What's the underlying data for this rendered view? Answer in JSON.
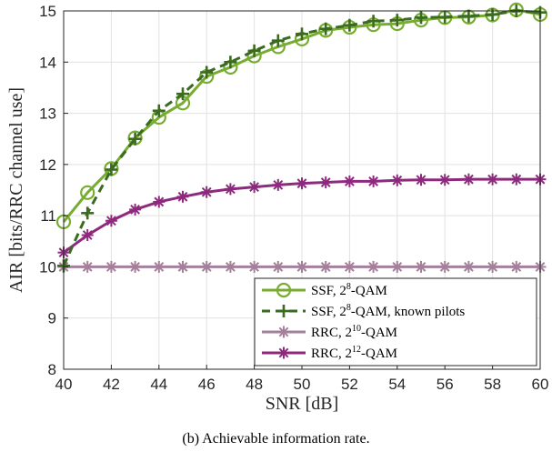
{
  "chart_data": {
    "type": "line",
    "xlabel": "SNR [dB]",
    "ylabel": "AIR [bits/RRC channel use]",
    "xlim": [
      40,
      60
    ],
    "ylim": [
      8,
      15
    ],
    "xticks": [
      "40",
      "42",
      "44",
      "46",
      "48",
      "50",
      "52",
      "54",
      "56",
      "58",
      "60"
    ],
    "yticks": [
      "8",
      "9",
      "10",
      "11",
      "12",
      "13",
      "14",
      "15"
    ],
    "grid": true,
    "legend_position": "lower-right",
    "x": [
      40,
      41,
      42,
      43,
      44,
      45,
      46,
      47,
      48,
      49,
      50,
      51,
      52,
      53,
      54,
      55,
      56,
      57,
      58,
      59,
      60
    ],
    "series": [
      {
        "name": "SSF, 2^8-QAM",
        "legend_prefix": "SSF, 2",
        "legend_exp": "8",
        "legend_suffix": "-QAM",
        "color": "#77AC30",
        "line": "solid",
        "marker": "circle",
        "values": [
          10.88,
          11.45,
          11.92,
          12.52,
          12.92,
          13.2,
          13.72,
          13.9,
          14.12,
          14.3,
          14.45,
          14.62,
          14.68,
          14.73,
          14.75,
          14.82,
          14.87,
          14.88,
          14.92,
          15.02,
          14.93
        ]
      },
      {
        "name": "SSF, 2^8-QAM, known pilots",
        "legend_prefix": "SSF, 2",
        "legend_exp": "8",
        "legend_suffix": "-QAM, known pilots",
        "color": "#3A6B20",
        "line": "dashed",
        "marker": "plus",
        "values": [
          10.02,
          11.05,
          11.9,
          12.5,
          13.05,
          13.38,
          13.8,
          14.0,
          14.22,
          14.42,
          14.55,
          14.65,
          14.72,
          14.8,
          14.82,
          14.87,
          14.88,
          14.9,
          14.93,
          15.0,
          14.97
        ]
      },
      {
        "name": "RRC, 2^10-QAM",
        "legend_prefix": "RRC, 2",
        "legend_exp": "10",
        "legend_suffix": "-QAM",
        "color": "#A5809B",
        "line": "solid",
        "marker": "asterisk",
        "values": [
          10,
          10,
          10,
          10,
          10,
          10,
          10,
          10,
          10,
          10,
          10,
          10,
          10,
          10,
          10,
          10,
          10,
          10,
          10,
          10,
          10
        ]
      },
      {
        "name": "RRC, 2^12-QAM",
        "legend_prefix": "RRC, 2",
        "legend_exp": "12",
        "legend_suffix": "-QAM",
        "color": "#8E2A7E",
        "line": "solid",
        "marker": "asterisk",
        "values": [
          10.28,
          10.62,
          10.9,
          11.12,
          11.27,
          11.37,
          11.46,
          11.52,
          11.56,
          11.6,
          11.63,
          11.65,
          11.67,
          11.67,
          11.69,
          11.7,
          11.7,
          11.71,
          11.71,
          11.71,
          11.71
        ]
      }
    ]
  },
  "caption": "(b) Achievable information rate."
}
